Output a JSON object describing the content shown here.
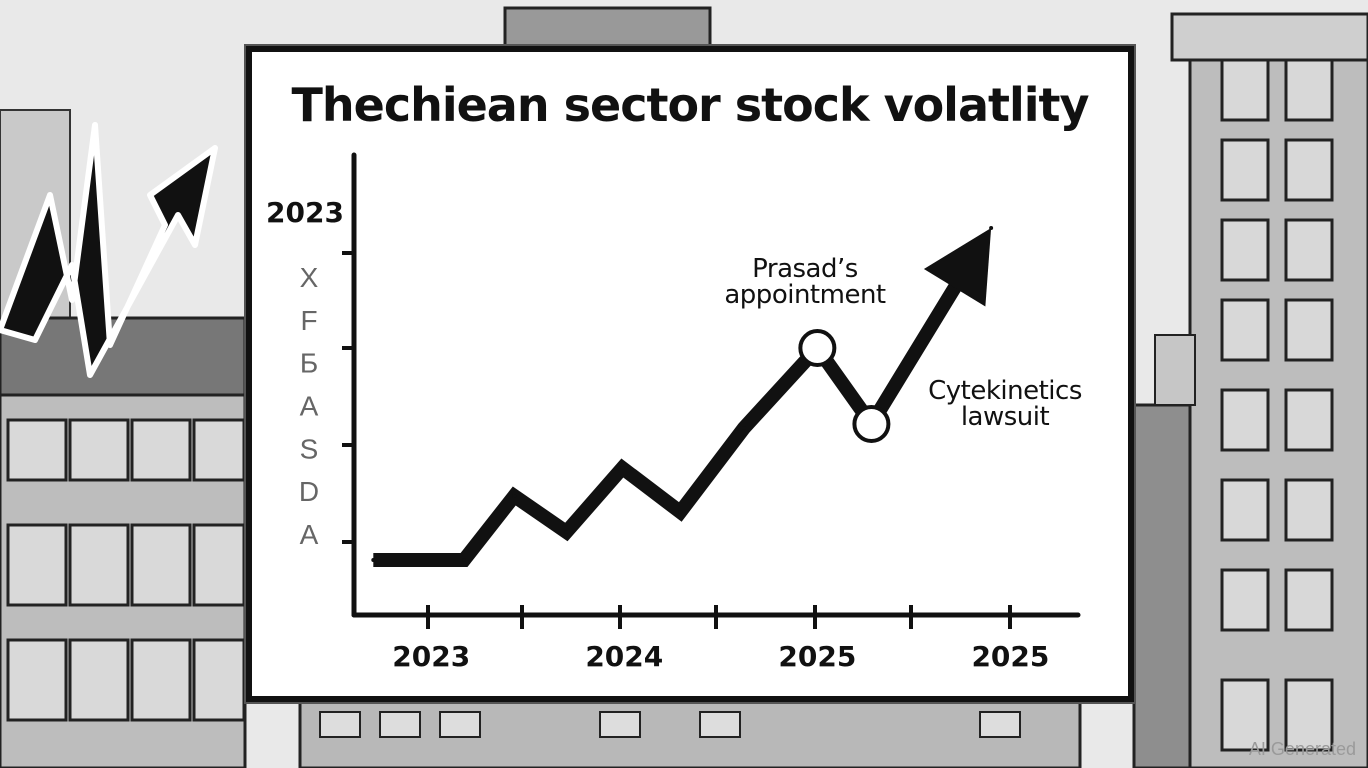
{
  "chart_data": {
    "type": "line",
    "title": "Thechiean sector stock volatlity",
    "y_top_label": "2023",
    "y_tick_labels": [
      "X",
      "F",
      "Б",
      "A",
      "S",
      "D",
      "A"
    ],
    "x_tick_labels": [
      "2023",
      "2024",
      "2025",
      "2025"
    ],
    "x_label_positions": [
      0.4,
      1.4,
      2.4,
      3.4
    ],
    "x_range": [
      0,
      3.75
    ],
    "y_range": [
      0,
      100
    ],
    "series": [
      {
        "name": "stock",
        "x": [
          0.1,
          0.57,
          0.83,
          1.1,
          1.39,
          1.69,
          2.02,
          2.4,
          2.68,
          3.3
        ],
        "y": [
          10,
          10,
          26,
          17,
          33,
          22,
          43,
          63,
          44,
          93
        ]
      }
    ],
    "annotations": [
      {
        "label": "Prasad’s",
        "label_line2": "appointment",
        "point_index": 7
      },
      {
        "label": "Cytekinetics",
        "label_line2": "lawsuit",
        "point_index": 8
      }
    ]
  },
  "watermark": "AI Generated"
}
